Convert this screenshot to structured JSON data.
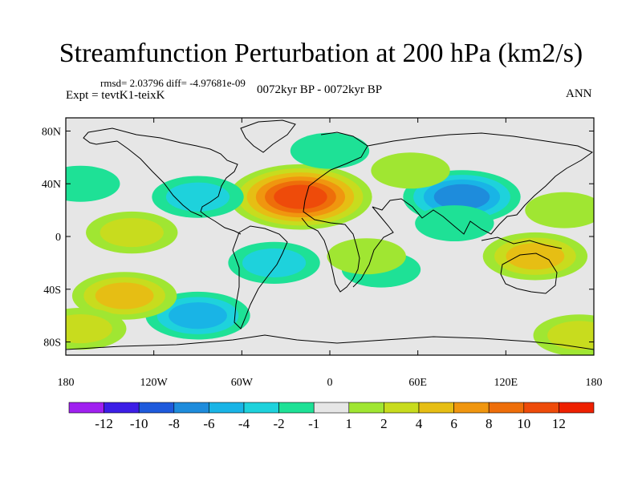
{
  "title": "Streamfunction Perturbation at 200 hPa (km2/s)",
  "stats": "rmsd= 2.03796 diff= -4.97681e-09",
  "experiment": "Expt = tevtK1-teixK",
  "period": "0072kyr BP - 0072kyr BP",
  "season": "ANN",
  "lat_labels": [
    "80N",
    "40N",
    "0",
    "40S",
    "80S"
  ],
  "lon_labels": [
    "180",
    "120W",
    "60W",
    "0",
    "60E",
    "120E",
    "180"
  ],
  "colorbar": {
    "labels": [
      "-12",
      "-10",
      "-8",
      "-6",
      "-4",
      "-2",
      "-1",
      "1",
      "2",
      "4",
      "6",
      "8",
      "10",
      "12"
    ],
    "colors": [
      "#a020f0",
      "#3c1ee6",
      "#1e5adc",
      "#1e8cdc",
      "#19b4e6",
      "#1ed2dc",
      "#1ee196",
      "#e6e6e6",
      "#a0e632",
      "#c8dc1e",
      "#e6be14",
      "#f0960f",
      "#ee6e0a",
      "#ee4b0a",
      "#ee2000"
    ]
  },
  "blobs": [
    {
      "lon": -20,
      "lat": 30,
      "level": 6,
      "sign": 1
    },
    {
      "lon": 90,
      "lat": 30,
      "level": 4,
      "sign": -1
    },
    {
      "lon": 0,
      "lat": 65,
      "level": 1,
      "sign": -1
    },
    {
      "lon": -90,
      "lat": 30,
      "level": 2,
      "sign": -1
    },
    {
      "lon": -38,
      "lat": -20,
      "level": 2,
      "sign": -1
    },
    {
      "lon": -90,
      "lat": -60,
      "level": 3,
      "sign": -1
    },
    {
      "lon": 35,
      "lat": -25,
      "level": 1,
      "sign": -1
    },
    {
      "lon": 85,
      "lat": 10,
      "level": 1,
      "sign": -1
    },
    {
      "lon": -135,
      "lat": 3,
      "level": 2,
      "sign": 1
    },
    {
      "lon": -140,
      "lat": -45,
      "level": 3,
      "sign": 1
    },
    {
      "lon": -170,
      "lat": -70,
      "level": 2,
      "sign": 1
    },
    {
      "lon": 140,
      "lat": -15,
      "level": 3,
      "sign": 1
    },
    {
      "lon": 25,
      "lat": -15,
      "level": 1,
      "sign": 1
    },
    {
      "lon": 55,
      "lat": 50,
      "level": 1,
      "sign": 1
    },
    {
      "lon": 170,
      "lat": -75,
      "level": 2,
      "sign": 1
    },
    {
      "lon": 160,
      "lat": 20,
      "level": 1,
      "sign": 1
    },
    {
      "lon": -170,
      "lat": 40,
      "level": 1,
      "sign": -1
    }
  ]
}
